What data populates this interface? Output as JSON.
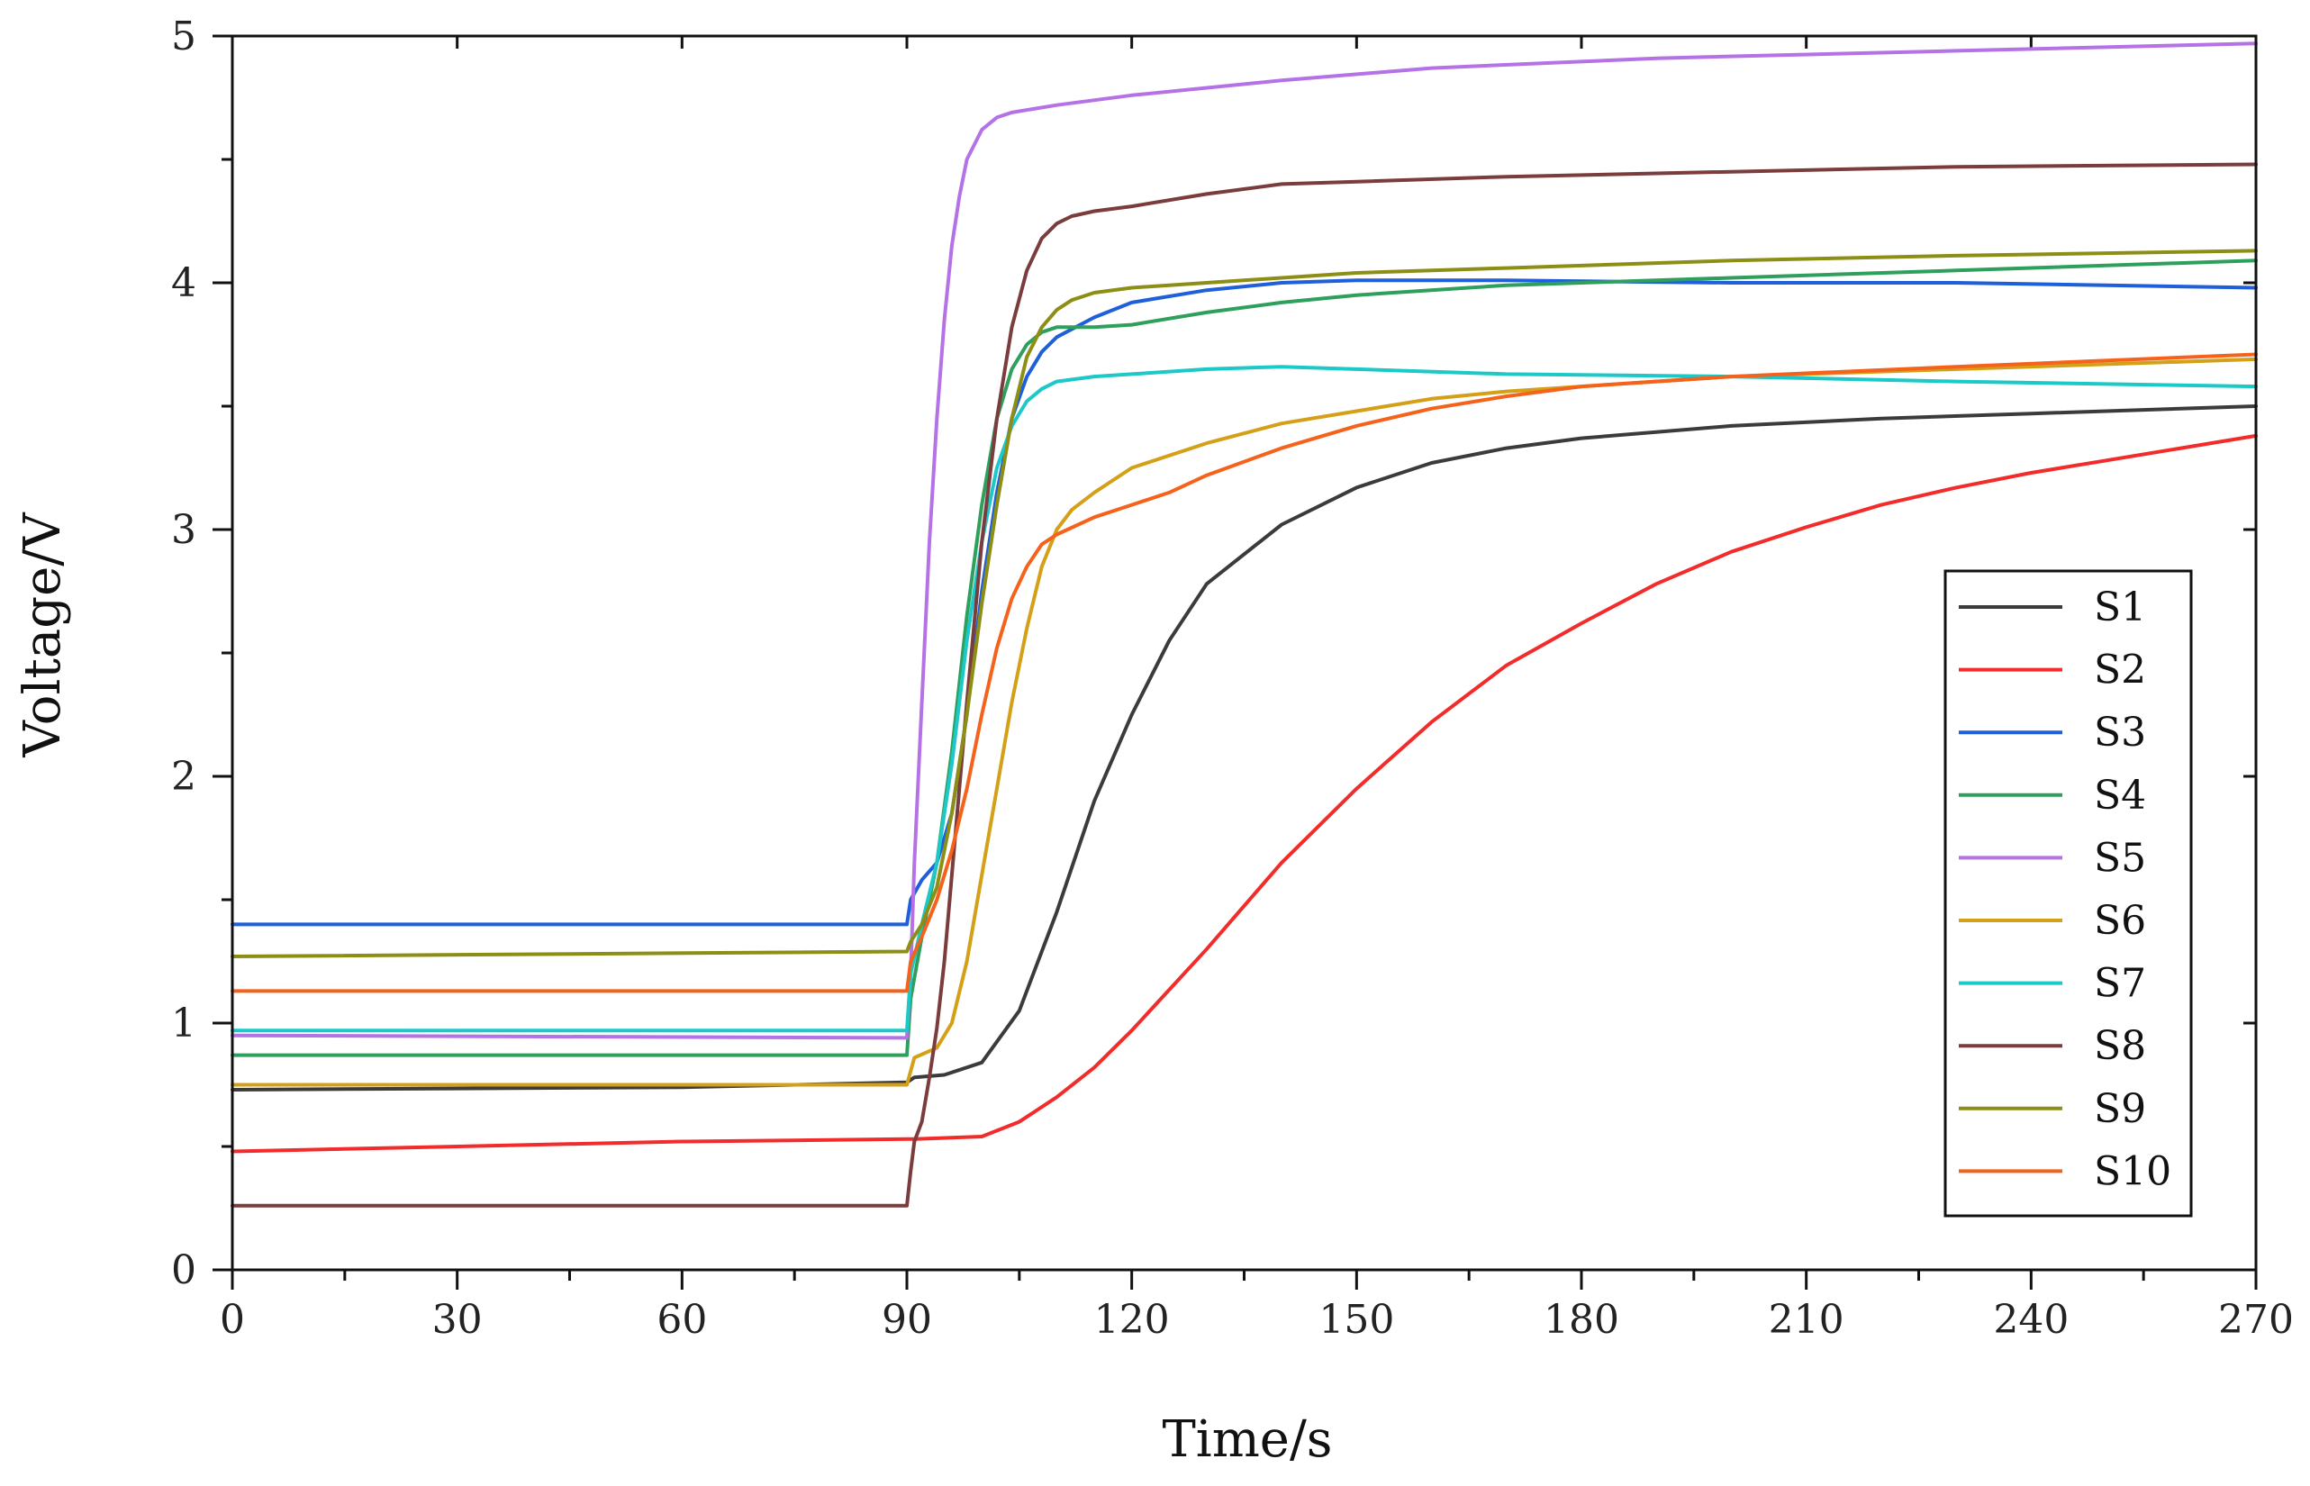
{
  "chart_data": {
    "type": "line",
    "title": "",
    "xlabel": "Time/s",
    "ylabel": "Voltage/V",
    "xlim": [
      0,
      270
    ],
    "ylim": [
      0,
      5
    ],
    "xticks": [
      0,
      30,
      60,
      90,
      120,
      150,
      180,
      210,
      240,
      270
    ],
    "yticks": [
      0,
      1,
      2,
      3,
      4,
      5
    ],
    "xtick_labels": [
      "0",
      "30",
      "60",
      "90",
      "120",
      "150",
      "180",
      "210",
      "240",
      "270"
    ],
    "ytick_labels": [
      "0",
      "1",
      "2",
      "3",
      "4",
      "5"
    ],
    "grid": false,
    "legend_position": "right-bottom",
    "series": [
      {
        "name": "S1",
        "color": "#3b3b3b",
        "x": [
          0,
          60,
          90,
          91,
          95,
          100,
          105,
          110,
          115,
          120,
          125,
          130,
          140,
          150,
          160,
          170,
          180,
          200,
          220,
          240,
          270
        ],
        "y": [
          0.73,
          0.74,
          0.76,
          0.78,
          0.79,
          0.84,
          1.05,
          1.45,
          1.9,
          2.25,
          2.55,
          2.78,
          3.02,
          3.17,
          3.27,
          3.33,
          3.37,
          3.42,
          3.45,
          3.47,
          3.5
        ]
      },
      {
        "name": "S2",
        "color": "#f22b2b",
        "x": [
          0,
          60,
          90,
          91,
          100,
          105,
          110,
          115,
          120,
          130,
          140,
          150,
          160,
          170,
          180,
          190,
          200,
          210,
          220,
          230,
          240,
          250,
          260,
          270
        ],
        "y": [
          0.48,
          0.52,
          0.53,
          0.53,
          0.54,
          0.6,
          0.7,
          0.82,
          0.97,
          1.3,
          1.65,
          1.95,
          2.22,
          2.45,
          2.62,
          2.78,
          2.91,
          3.01,
          3.1,
          3.17,
          3.23,
          3.28,
          3.33,
          3.38
        ]
      },
      {
        "name": "S3",
        "color": "#1f5fd9",
        "x": [
          0,
          90,
          90.5,
          92,
          94,
          96,
          98,
          100,
          102,
          104,
          106,
          108,
          110,
          115,
          120,
          130,
          140,
          150,
          170,
          200,
          230,
          270
        ],
        "y": [
          1.4,
          1.4,
          1.5,
          1.58,
          1.65,
          1.85,
          2.25,
          2.75,
          3.15,
          3.45,
          3.62,
          3.72,
          3.78,
          3.86,
          3.92,
          3.97,
          4.0,
          4.01,
          4.01,
          4.0,
          4.0,
          3.98
        ]
      },
      {
        "name": "S4",
        "color": "#2e9f5c",
        "x": [
          0,
          90,
          90.5,
          92,
          94,
          96,
          98,
          100,
          102,
          104,
          106,
          108,
          110,
          115,
          120,
          130,
          140,
          150,
          170,
          200,
          230,
          270
        ],
        "y": [
          0.87,
          0.87,
          1.1,
          1.35,
          1.65,
          2.1,
          2.65,
          3.1,
          3.45,
          3.65,
          3.75,
          3.8,
          3.82,
          3.82,
          3.83,
          3.88,
          3.92,
          3.95,
          3.99,
          4.02,
          4.05,
          4.09
        ]
      },
      {
        "name": "S5",
        "color": "#b572e6",
        "x": [
          0,
          90,
          90.5,
          91,
          92,
          93,
          94,
          95,
          96,
          97,
          98,
          100,
          102,
          104,
          110,
          120,
          140,
          160,
          190,
          230,
          270
        ],
        "y": [
          0.95,
          0.94,
          1.2,
          1.65,
          2.3,
          2.95,
          3.45,
          3.85,
          4.15,
          4.35,
          4.5,
          4.62,
          4.67,
          4.69,
          4.72,
          4.76,
          4.82,
          4.87,
          4.91,
          4.94,
          4.97
        ]
      },
      {
        "name": "S6",
        "color": "#d4a017",
        "x": [
          0,
          90,
          91,
          94,
          96,
          98,
          100,
          102,
          104,
          106,
          108,
          110,
          112,
          115,
          120,
          130,
          140,
          150,
          160,
          170,
          180,
          200,
          230,
          270
        ],
        "y": [
          0.75,
          0.75,
          0.86,
          0.9,
          1.0,
          1.25,
          1.6,
          1.95,
          2.3,
          2.6,
          2.85,
          3.0,
          3.08,
          3.15,
          3.25,
          3.35,
          3.43,
          3.48,
          3.53,
          3.56,
          3.58,
          3.62,
          3.65,
          3.69
        ]
      },
      {
        "name": "S7",
        "color": "#1dc8c8",
        "x": [
          0,
          60,
          90,
          90.5,
          92,
          94,
          96,
          98,
          100,
          102,
          104,
          106,
          108,
          110,
          115,
          120,
          130,
          140,
          150,
          170,
          200,
          230,
          270
        ],
        "y": [
          0.97,
          0.97,
          0.97,
          1.2,
          1.4,
          1.65,
          2.05,
          2.55,
          2.95,
          3.25,
          3.42,
          3.52,
          3.57,
          3.6,
          3.62,
          3.63,
          3.65,
          3.66,
          3.65,
          3.63,
          3.62,
          3.6,
          3.58
        ]
      },
      {
        "name": "S8",
        "color": "#7a3c3c",
        "x": [
          0,
          90,
          90.5,
          91,
          92,
          93,
          94,
          95,
          96,
          98,
          100,
          102,
          104,
          106,
          108,
          110,
          112,
          115,
          120,
          130,
          140,
          150,
          170,
          200,
          230,
          270
        ],
        "y": [
          0.26,
          0.26,
          0.4,
          0.52,
          0.6,
          0.78,
          0.98,
          1.25,
          1.6,
          2.3,
          2.95,
          3.45,
          3.82,
          4.05,
          4.18,
          4.24,
          4.27,
          4.29,
          4.31,
          4.36,
          4.4,
          4.41,
          4.43,
          4.45,
          4.47,
          4.48
        ]
      },
      {
        "name": "S9",
        "color": "#8c8f14",
        "x": [
          0,
          90,
          90.5,
          92,
          94,
          96,
          98,
          100,
          102,
          104,
          106,
          108,
          110,
          112,
          115,
          120,
          130,
          140,
          150,
          170,
          200,
          230,
          270
        ],
        "y": [
          1.27,
          1.29,
          1.33,
          1.4,
          1.55,
          1.85,
          2.25,
          2.7,
          3.1,
          3.45,
          3.7,
          3.82,
          3.89,
          3.93,
          3.96,
          3.98,
          4.0,
          4.02,
          4.04,
          4.06,
          4.09,
          4.11,
          4.13
        ]
      },
      {
        "name": "S10",
        "color": "#f5621b",
        "x": [
          0,
          90,
          90.5,
          92,
          94,
          96,
          98,
          100,
          102,
          104,
          106,
          108,
          110,
          115,
          120,
          125,
          130,
          140,
          150,
          160,
          170,
          180,
          200,
          230,
          270
        ],
        "y": [
          1.13,
          1.13,
          1.25,
          1.35,
          1.5,
          1.7,
          1.95,
          2.25,
          2.52,
          2.72,
          2.85,
          2.94,
          2.98,
          3.05,
          3.1,
          3.15,
          3.22,
          3.33,
          3.42,
          3.49,
          3.54,
          3.58,
          3.62,
          3.66,
          3.71
        ]
      }
    ]
  }
}
